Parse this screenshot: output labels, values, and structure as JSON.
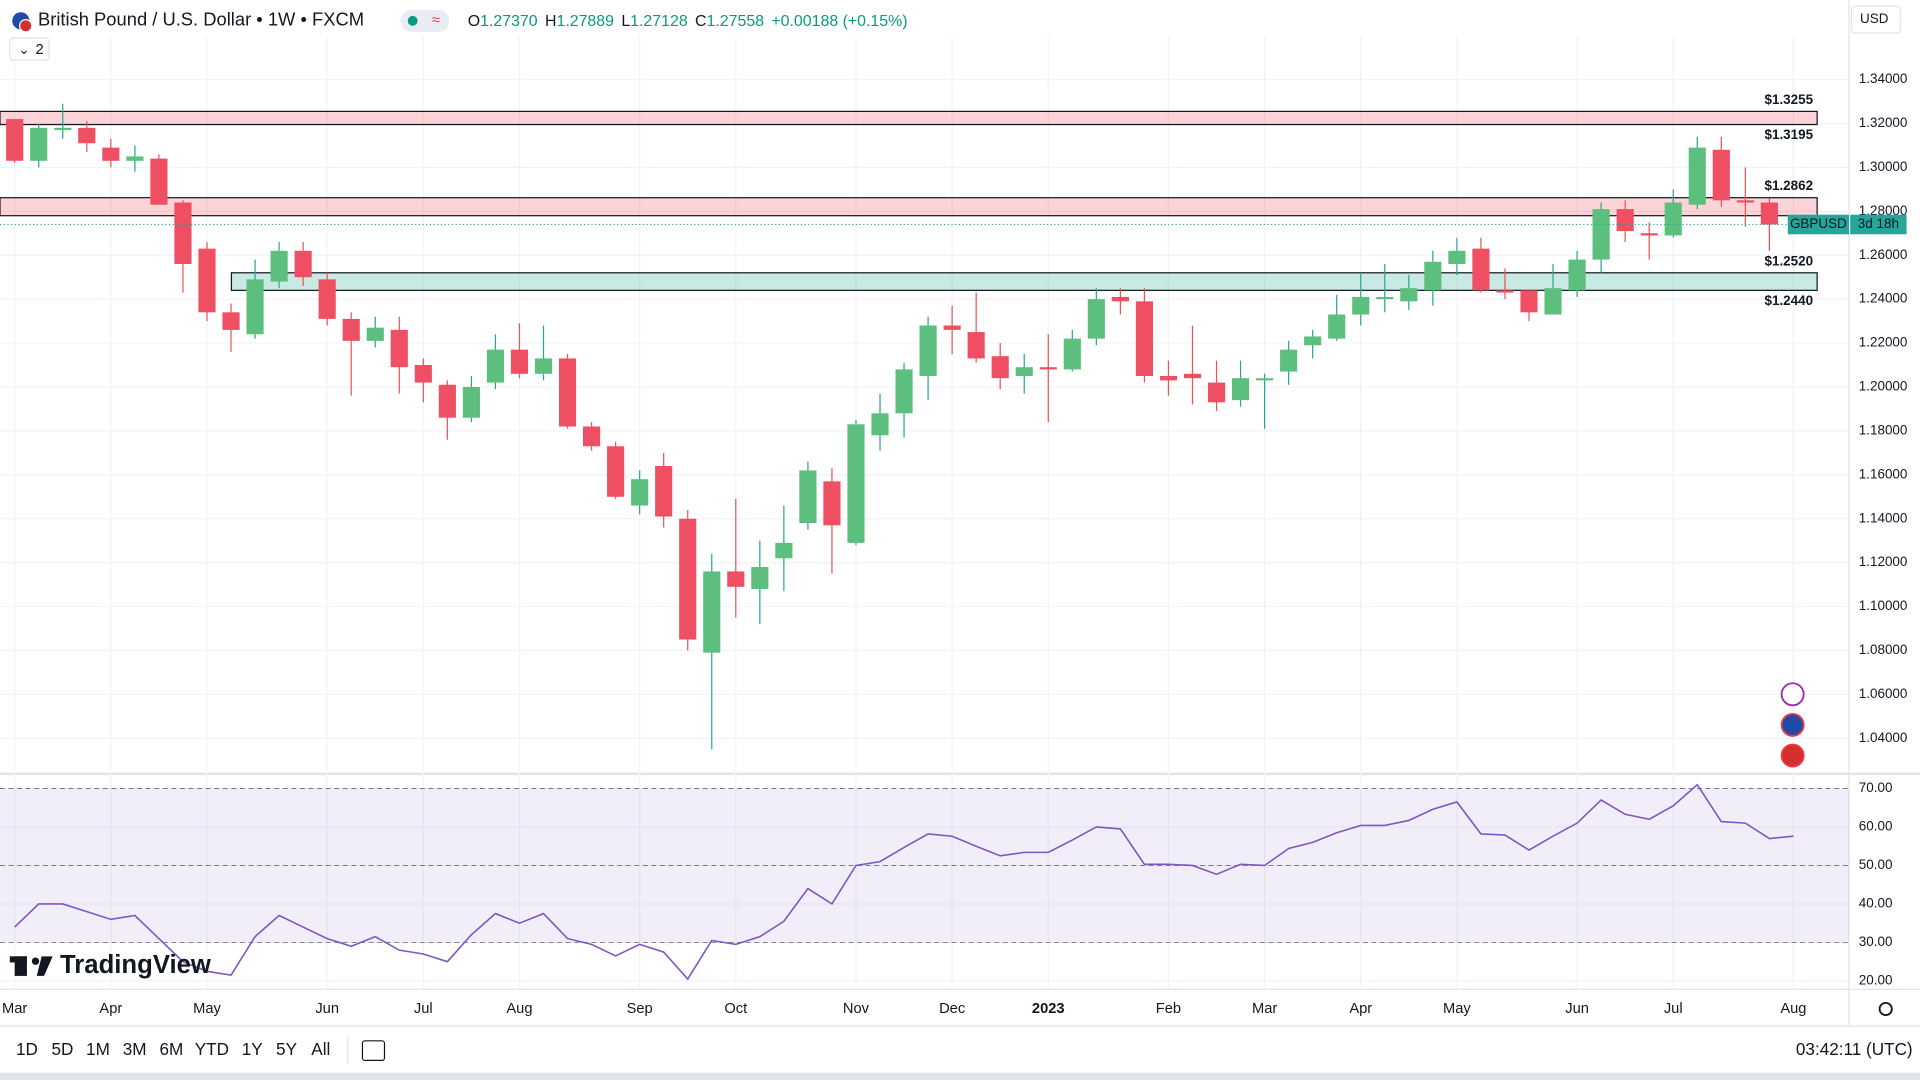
{
  "header": {
    "title": "British Pound / U.S. Dollar • 1W • FXCM",
    "ohlc": [
      {
        "key": "O",
        "value": "1.27370"
      },
      {
        "key": "H",
        "value": "1.27889"
      },
      {
        "key": "L",
        "value": "1.27128"
      },
      {
        "key": "C",
        "value": "1.27558"
      }
    ],
    "change": "+0.00188 (+0.15%)",
    "indicator_count": "2",
    "currency": "USD",
    "brand": "TradingView"
  },
  "chart_data": [
    {
      "type": "candlestick",
      "categories": [
        "Mar",
        null,
        null,
        null,
        "Apr",
        null,
        null,
        null,
        "May",
        null,
        null,
        null,
        null,
        "Jun",
        null,
        null,
        null,
        "Jul",
        null,
        null,
        null,
        "Aug",
        null,
        null,
        null,
        null,
        "Sep",
        null,
        null,
        null,
        "Oct",
        null,
        null,
        null,
        null,
        "Nov",
        null,
        null,
        null,
        "Dec",
        null,
        null,
        null,
        "2023",
        null,
        null,
        null,
        null,
        "Feb",
        null,
        null,
        null,
        "Mar",
        null,
        null,
        null,
        "Apr",
        null,
        null,
        null,
        "May",
        null,
        null,
        null,
        null,
        "Jun",
        null,
        null,
        null,
        "Jul",
        null,
        null,
        null,
        null,
        "Aug"
      ],
      "open": [
        1.322,
        1.303,
        1.317,
        1.318,
        1.309,
        1.303,
        1.304,
        1.284,
        1.263,
        1.234,
        1.224,
        1.248,
        1.262,
        1.249,
        1.231,
        1.221,
        1.226,
        1.21,
        1.201,
        1.186,
        1.202,
        1.217,
        1.206,
        1.213,
        1.182,
        1.173,
        1.146,
        1.164,
        1.14,
        1.079,
        1.116,
        1.108,
        1.122,
        1.138,
        1.157,
        1.129,
        1.178,
        1.188,
        1.205,
        1.228,
        1.225,
        1.214,
        1.205,
        1.209,
        1.208,
        1.222,
        1.241,
        1.239,
        1.205,
        1.206,
        1.202,
        1.194,
        1.203,
        1.207,
        1.219,
        1.222,
        1.233,
        1.24,
        1.239,
        1.244,
        1.256,
        1.263,
        1.244,
        1.244,
        1.233,
        1.244,
        1.258,
        1.281,
        1.27,
        1.269,
        1.283,
        1.308,
        1.285,
        1.284,
        null
      ],
      "high": [
        1.322,
        1.32,
        1.329,
        1.321,
        1.313,
        1.31,
        1.306,
        1.285,
        1.266,
        1.238,
        1.258,
        1.266,
        1.266,
        1.252,
        1.234,
        1.232,
        1.232,
        1.213,
        1.203,
        1.205,
        1.224,
        1.229,
        1.228,
        1.215,
        1.184,
        1.175,
        1.162,
        1.17,
        1.144,
        1.124,
        1.149,
        1.13,
        1.146,
        1.166,
        1.163,
        1.185,
        1.197,
        1.211,
        1.232,
        1.237,
        1.243,
        1.22,
        1.215,
        1.224,
        1.226,
        1.245,
        1.245,
        1.245,
        1.212,
        1.228,
        1.212,
        1.212,
        1.206,
        1.221,
        1.226,
        1.242,
        1.252,
        1.256,
        1.251,
        1.262,
        1.268,
        1.268,
        1.254,
        1.244,
        1.256,
        1.262,
        1.284,
        1.285,
        1.275,
        1.29,
        1.314,
        1.314,
        1.3,
        1.286,
        null
      ],
      "low": [
        1.302,
        1.3,
        1.313,
        1.307,
        1.3,
        1.298,
        1.283,
        1.243,
        1.23,
        1.216,
        1.222,
        1.245,
        1.246,
        1.228,
        1.196,
        1.218,
        1.197,
        1.193,
        1.176,
        1.184,
        1.199,
        1.204,
        1.203,
        1.181,
        1.171,
        1.149,
        1.142,
        1.136,
        1.08,
        1.035,
        1.095,
        1.092,
        1.107,
        1.135,
        1.115,
        1.128,
        1.171,
        1.177,
        1.194,
        1.215,
        1.211,
        1.199,
        1.197,
        1.184,
        1.207,
        1.219,
        1.233,
        1.202,
        1.196,
        1.192,
        1.189,
        1.191,
        1.181,
        1.201,
        1.213,
        1.221,
        1.228,
        1.234,
        1.235,
        1.237,
        1.251,
        1.243,
        1.24,
        1.23,
        1.233,
        1.241,
        1.252,
        1.266,
        1.258,
        1.268,
        1.281,
        1.282,
        1.273,
        1.262,
        null
      ],
      "close": [
        1.303,
        1.318,
        1.318,
        1.311,
        1.303,
        1.305,
        1.283,
        1.256,
        1.234,
        1.226,
        1.249,
        1.262,
        1.25,
        1.231,
        1.221,
        1.227,
        1.209,
        1.202,
        1.186,
        1.2,
        1.217,
        1.206,
        1.213,
        1.182,
        1.173,
        1.15,
        1.158,
        1.141,
        1.085,
        1.116,
        1.109,
        1.118,
        1.129,
        1.162,
        1.137,
        1.183,
        1.188,
        1.208,
        1.228,
        1.226,
        1.213,
        1.204,
        1.209,
        1.208,
        1.222,
        1.24,
        1.239,
        1.205,
        1.203,
        1.204,
        1.193,
        1.204,
        1.204,
        1.217,
        1.223,
        1.233,
        1.241,
        1.241,
        1.245,
        1.257,
        1.262,
        1.244,
        1.243,
        1.234,
        1.245,
        1.258,
        1.281,
        1.271,
        1.269,
        1.284,
        1.309,
        1.285,
        1.284,
        1.274,
        null
      ],
      "up_color": "#26a69a",
      "down_color": "#ef5350",
      "up_fill": "#5cbf7e",
      "down_fill": "#ef4f63",
      "ylim": [
        1.0238,
        1.3595
      ],
      "yticks": [
        {
          "value": 1.04,
          "label": "1.04000"
        },
        {
          "value": 1.06,
          "label": "1.06000"
        },
        {
          "value": 1.08,
          "label": "1.08000"
        },
        {
          "value": 1.1,
          "label": "1.10000"
        },
        {
          "value": 1.12,
          "label": "1.12000"
        },
        {
          "value": 1.14,
          "label": "1.14000"
        },
        {
          "value": 1.16,
          "label": "1.16000"
        },
        {
          "value": 1.18,
          "label": "1.18000"
        },
        {
          "value": 1.2,
          "label": "1.20000"
        },
        {
          "value": 1.22,
          "label": "1.22000"
        },
        {
          "value": 1.24,
          "label": "1.24000"
        },
        {
          "value": 1.26,
          "label": "1.26000"
        },
        {
          "value": 1.28,
          "label": "1.28000"
        },
        {
          "value": 1.3,
          "label": "1.30000"
        },
        {
          "value": 1.32,
          "label": "1.32000"
        },
        {
          "value": 1.34,
          "label": "1.34000"
        }
      ],
      "grid": true,
      "zones": [
        {
          "upper": 1.3255,
          "lower": 1.3195,
          "upper_label": "$1.3255",
          "lower_label": "$1.3195",
          "color": "#f23645"
        },
        {
          "upper": 1.2862,
          "lower": 1.278,
          "upper_label": "$1.2862",
          "color": "#f23645"
        },
        {
          "upper": 1.252,
          "lower": 1.244,
          "upper_label": "$1.2520",
          "lower_label": "$1.2440",
          "color": "#089981"
        }
      ],
      "last_badge": {
        "symbol": "GBPUSD",
        "countdown": "3d 18h",
        "color": "#26a69a"
      }
    },
    {
      "type": "line",
      "values": [
        34,
        40,
        40,
        38,
        36,
        37,
        31,
        25,
        22.5,
        21.5,
        31.5,
        37,
        34,
        31,
        29,
        31.5,
        28,
        27,
        25,
        32,
        37.5,
        35,
        37.5,
        31,
        29.5,
        26.5,
        29.5,
        27.5,
        20.5,
        30.5,
        29.5,
        31.5,
        35.5,
        44,
        40,
        50,
        51,
        54.7,
        58.2,
        57.6,
        55,
        52.5,
        53.4,
        53.4,
        56.6,
        60,
        59.5,
        50.3,
        50.3,
        50,
        47.7,
        50.3,
        50,
        54.4,
        56,
        58.5,
        60.4,
        60.4,
        61.7,
        64.6,
        66.5,
        58.2,
        57.9,
        54,
        57.6,
        61,
        67,
        63.3,
        62,
        65.5,
        71,
        61.4,
        61,
        57,
        57.6
      ],
      "color": "#7e57c2",
      "ylim": [
        17.8,
        73.8
      ],
      "yticks": [
        {
          "value": 20,
          "label": "20.00"
        },
        {
          "value": 30,
          "label": "30.00"
        },
        {
          "value": 40,
          "label": "40.00"
        },
        {
          "value": 50,
          "label": "50.00"
        },
        {
          "value": 60,
          "label": "60.00"
        },
        {
          "value": 70,
          "label": "70.00"
        }
      ],
      "bands": {
        "upper": 70,
        "middle": 50,
        "lower": 30
      }
    }
  ],
  "toolbar": {
    "ranges": [
      "1D",
      "5D",
      "1M",
      "3M",
      "6M",
      "YTD",
      "1Y",
      "5Y",
      "All"
    ],
    "clock": "03:42:11 (UTC)"
  }
}
